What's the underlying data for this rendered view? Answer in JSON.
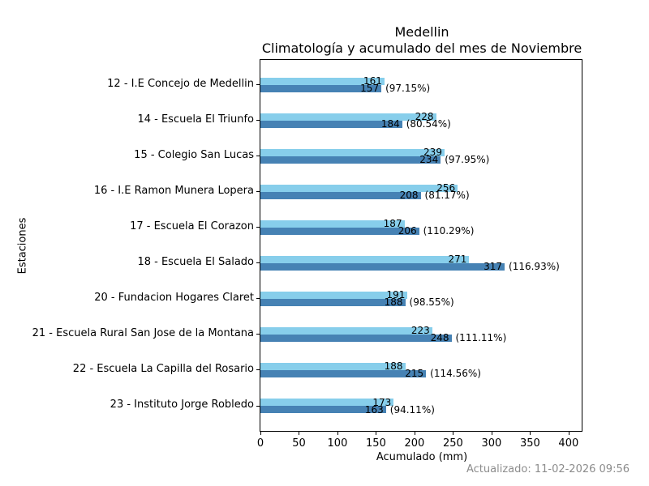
{
  "chart_data": {
    "type": "bar",
    "orientation": "horizontal",
    "title_line1": "Medellin",
    "title_line2": "Climatología y acumulado del mes de Noviembre",
    "xlabel": "Acumulado (mm)",
    "ylabel": "Estaciones",
    "xlim": [
      0,
      417
    ],
    "xticks": [
      0,
      50,
      100,
      150,
      200,
      250,
      300,
      350,
      400
    ],
    "grid": false,
    "legend": "none",
    "bar_colors": {
      "climatologia": "#87CEEB",
      "acumulado": "#4682B4"
    },
    "series_names": [
      "Climatología",
      "Acumulado"
    ],
    "stations": [
      {
        "label": "12 - I.E Concejo de Medellin",
        "climatologia": 161,
        "acumulado": 157,
        "pct": "(97.15%)"
      },
      {
        "label": "14 - Escuela El Triunfo",
        "climatologia": 228,
        "acumulado": 184,
        "pct": "(80.54%)"
      },
      {
        "label": "15 - Colegio San Lucas",
        "climatologia": 239,
        "acumulado": 234,
        "pct": "(97.95%)"
      },
      {
        "label": "16 - I.E Ramon Munera Lopera",
        "climatologia": 256,
        "acumulado": 208,
        "pct": "(81.17%)"
      },
      {
        "label": "17 - Escuela El Corazon",
        "climatologia": 187,
        "acumulado": 206,
        "pct": "(110.29%)"
      },
      {
        "label": "18 - Escuela El Salado",
        "climatologia": 271,
        "acumulado": 317,
        "pct": "(116.93%)"
      },
      {
        "label": "20 - Fundacion Hogares Claret",
        "climatologia": 191,
        "acumulado": 188,
        "pct": "(98.55%)"
      },
      {
        "label": "21 - Escuela Rural San Jose de la Montana",
        "climatologia": 223,
        "acumulado": 248,
        "pct": "(111.11%)"
      },
      {
        "label": "22 - Escuela La Capilla del Rosario",
        "climatologia": 188,
        "acumulado": 215,
        "pct": "(114.56%)"
      },
      {
        "label": "23 - Instituto Jorge Robledo",
        "climatologia": 173,
        "acumulado": 163,
        "pct": "(94.11%)"
      }
    ],
    "footer": "Actualizado: 11-02-2026 09:56",
    "colors": {
      "axis": "#000000",
      "footer_text": "#8c8c8c",
      "background": "#ffffff"
    }
  }
}
